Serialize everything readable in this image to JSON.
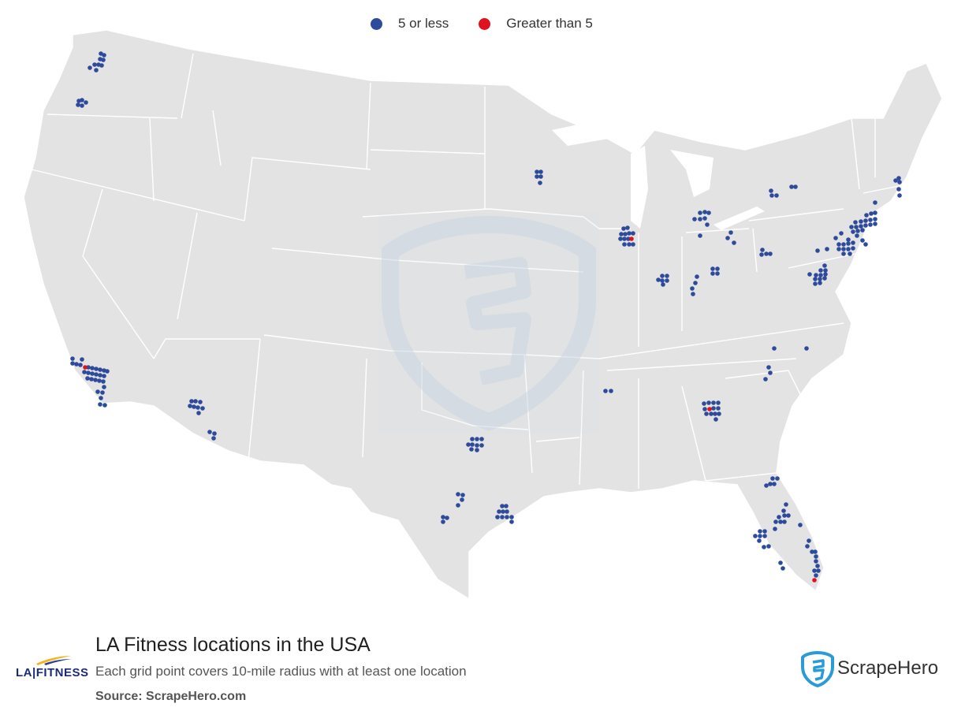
{
  "legend": {
    "items": [
      {
        "label": "5 or less",
        "color": "#2e4a9a"
      },
      {
        "label": "Greater than 5",
        "color": "#e0121e"
      }
    ]
  },
  "footer": {
    "title": "LA Fitness locations in the USA",
    "subtitle": "Each grid point covers 10-mile radius with at least one location",
    "source": "Source: ScrapeHero.com"
  },
  "brand": {
    "logo_text": "LA|FITNESS",
    "logo_icon": "swoosh-icon"
  },
  "scrapehero": {
    "logo_text": "ScrapeHero",
    "logo_icon": "scrapehero-shield-icon"
  },
  "colors": {
    "land": "#e3e3e3",
    "border": "#ffffff",
    "low": "#2e4a9a",
    "high": "#e0121e",
    "watermark": "#c9d6e3"
  }
}
